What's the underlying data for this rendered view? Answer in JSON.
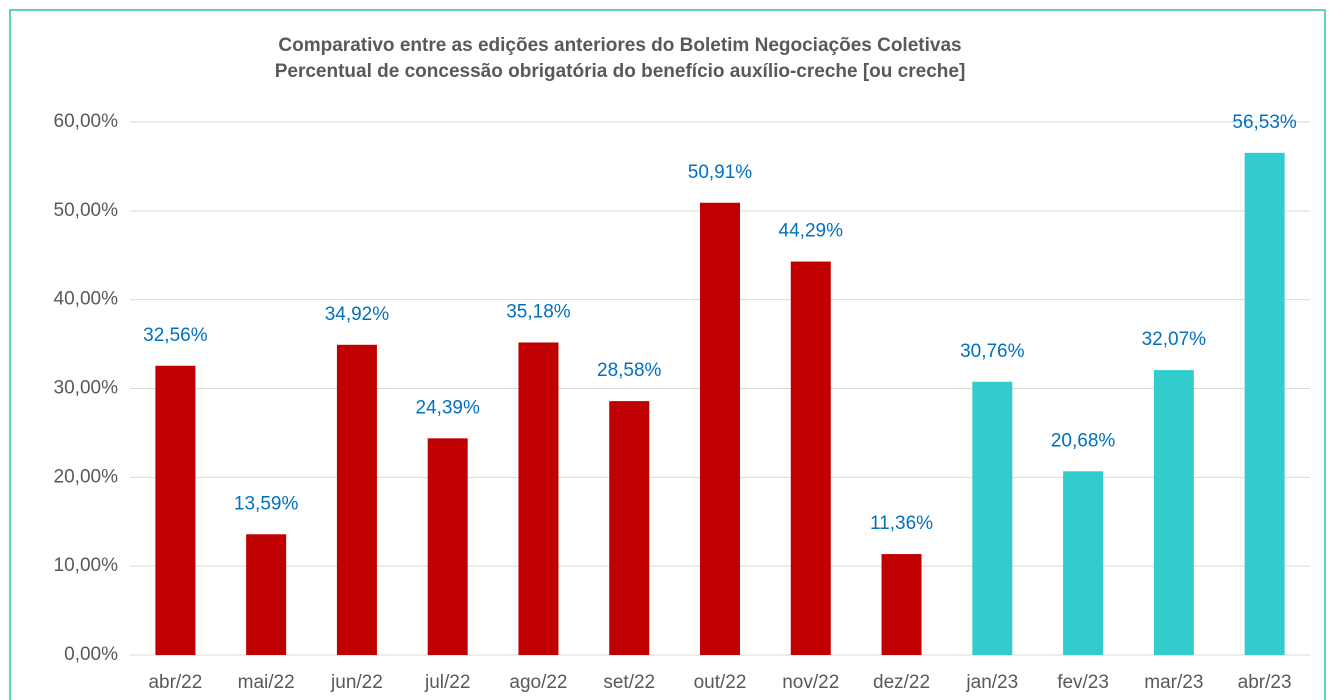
{
  "chart_data": {
    "type": "bar",
    "title": "Comparativo entre as edições anteriores do Boletim Negociações Coletivas",
    "subtitle": "Percentual de concessão obrigatória do benefício auxílio-creche [ou creche]",
    "categories": [
      "abr/22",
      "mai/22",
      "jun/22",
      "jul/22",
      "ago/22",
      "set/22",
      "out/22",
      "nov/22",
      "dez/22",
      "jan/23",
      "fev/23",
      "mar/23",
      "abr/23"
    ],
    "values": [
      32.56,
      13.59,
      34.92,
      24.39,
      35.18,
      28.58,
      50.91,
      44.29,
      11.36,
      30.76,
      20.68,
      32.07,
      56.53
    ],
    "value_labels": [
      "32,56%",
      "13,59%",
      "34,92%",
      "24,39%",
      "35,18%",
      "28,58%",
      "50,91%",
      "44,29%",
      "11,36%",
      "30,76%",
      "20,68%",
      "32,07%",
      "56,53%"
    ],
    "colors": [
      "#c00000",
      "#c00000",
      "#c00000",
      "#c00000",
      "#c00000",
      "#c00000",
      "#c00000",
      "#c00000",
      "#c00000",
      "#33cccc",
      "#33cccc",
      "#33cccc",
      "#33cccc"
    ],
    "ylim": [
      0,
      60
    ],
    "yticks": [
      {
        "value": 0,
        "label": "0,00%"
      },
      {
        "value": 10,
        "label": "10,00%"
      },
      {
        "value": 20,
        "label": "20,00%"
      },
      {
        "value": 30,
        "label": "30,00%"
      },
      {
        "value": 40,
        "label": "40,00%"
      },
      {
        "value": 50,
        "label": "50,00%"
      },
      {
        "value": 60,
        "label": "60,00%"
      }
    ],
    "grid": true
  }
}
